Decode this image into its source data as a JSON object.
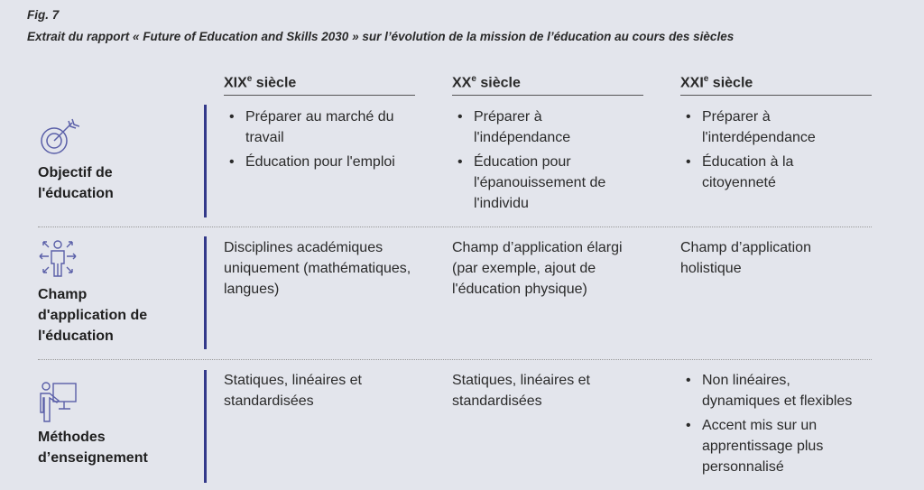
{
  "figure": {
    "number": "Fig. 7",
    "caption": "Extrait du rapport « Future of Education and Skills 2030 » sur l’évolution de la mission de l’éducation au cours des siècles"
  },
  "columns": [
    {
      "roman": "XIX",
      "sup": "e",
      "label": " siècle"
    },
    {
      "roman": "XX",
      "sup": "e",
      "label": " siècle"
    },
    {
      "roman": "XXI",
      "sup": "e",
      "label": " siècle"
    }
  ],
  "rows": [
    {
      "label": "Objectif de l'éducation",
      "icon": "target-arrow-icon",
      "cells": [
        {
          "bullets": [
            "Préparer au marché du travail",
            "Éducation pour l'emploi"
          ]
        },
        {
          "bullets": [
            "Préparer à l'indépendance",
            "Éducation pour l'épanouissement de l'individu"
          ]
        },
        {
          "bullets": [
            "Préparer à l'interdépendance",
            "Éducation à la citoyenneté"
          ]
        }
      ]
    },
    {
      "label": "Champ d'application de l'éducation",
      "icon": "person-expanding-arrows-icon",
      "cells": [
        {
          "text": "Disciplines académiques uniquement (mathématiques, langues)"
        },
        {
          "text": "Champ d’application élargi (par exemple, ajout de l'éducation physique)"
        },
        {
          "text": "Champ d’application holistique"
        }
      ]
    },
    {
      "label": "Méthodes d’enseignement",
      "icon": "teacher-board-icon",
      "cells": [
        {
          "text": "Statiques, linéaires et standardisées"
        },
        {
          "text": "Statiques, linéaires et standardisées"
        },
        {
          "bullets": [
            "Non linéaires, dynamiques et flexibles",
            "Accent mis sur un apprentissage plus personnalisé"
          ]
        }
      ]
    }
  ],
  "colors": {
    "accent": "#33398a",
    "icon": "#5a5fa8",
    "background": "#e3e5ec"
  }
}
